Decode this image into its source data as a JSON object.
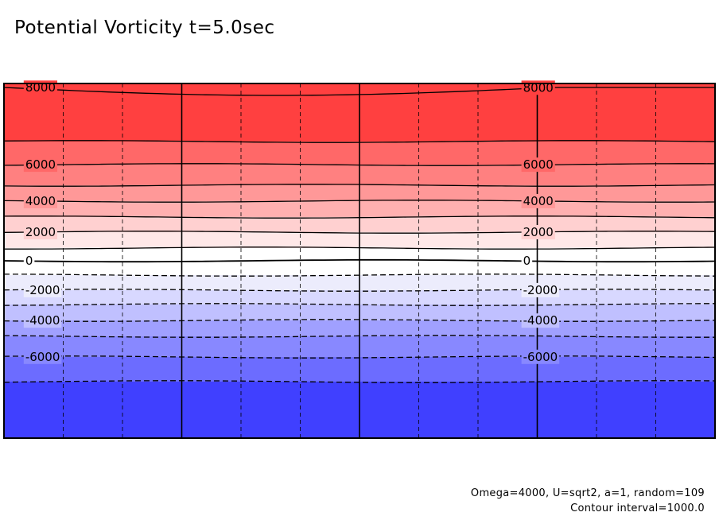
{
  "title": "Potential Vorticity t=5.0sec",
  "footnotes": {
    "params": "Omega=4000, U=sqrt2, a=1, random=109",
    "interval": "Contour interval=1000.0"
  },
  "chart_data": {
    "type": "heatmap",
    "title": "Potential Vorticity t=5.0sec",
    "xlim": [
      0,
      1
    ],
    "ylim": [
      -9000,
      9000
    ],
    "contour_interval": 1000.0,
    "fill_bands": [
      {
        "from": 7000,
        "to": 9000,
        "color": "#ff4040"
      },
      {
        "from": 6000,
        "to": 7000,
        "color": "#ff6868"
      },
      {
        "from": 5000,
        "to": 6000,
        "color": "#ff8080"
      },
      {
        "from": 4000,
        "to": 5000,
        "color": "#ff9898"
      },
      {
        "from": 3000,
        "to": 4000,
        "color": "#ffb0b0"
      },
      {
        "from": 2000,
        "to": 3000,
        "color": "#ffd0d0"
      },
      {
        "from": 1000,
        "to": 2000,
        "color": "#ffe8e8"
      },
      {
        "from": 0,
        "to": 1000,
        "color": "#ffffff"
      },
      {
        "from": -1000,
        "to": 0,
        "color": "#ffffff"
      },
      {
        "from": -2000,
        "to": -1000,
        "color": "#ececfc"
      },
      {
        "from": -3000,
        "to": -2000,
        "color": "#d8d8ff"
      },
      {
        "from": -4000,
        "to": -3000,
        "color": "#c0c0ff"
      },
      {
        "from": -5000,
        "to": -4000,
        "color": "#a0a0ff"
      },
      {
        "from": -6000,
        "to": -5000,
        "color": "#8888ff"
      },
      {
        "from": -7000,
        "to": -6000,
        "color": "#6c6cff"
      },
      {
        "from": -9000,
        "to": -7000,
        "color": "#4040ff"
      }
    ],
    "contour_levels": [
      8000,
      7000,
      6000,
      5000,
      4000,
      3000,
      2000,
      1000,
      0,
      -1000,
      -2000,
      -3000,
      -4000,
      -5000,
      -6000,
      -7000
    ],
    "contour_labels": [
      {
        "level": 8000,
        "text": "8000",
        "x": [
          0.03,
          0.73
        ]
      },
      {
        "level": 6000,
        "text": "6000",
        "x": [
          0.03,
          0.73
        ]
      },
      {
        "level": 4000,
        "text": "4000",
        "x": [
          0.03,
          0.73
        ]
      },
      {
        "level": 2000,
        "text": "2000",
        "x": [
          0.03,
          0.73
        ]
      },
      {
        "level": 0,
        "text": "0",
        "x": [
          0.03,
          0.73
        ]
      },
      {
        "level": -2000,
        "text": "-2000",
        "x": [
          0.03,
          0.73
        ]
      },
      {
        "level": -4000,
        "text": "-4000",
        "x": [
          0.03,
          0.73
        ]
      },
      {
        "level": -6000,
        "text": "-6000",
        "x": [
          0.03,
          0.73
        ]
      }
    ],
    "grid": true,
    "legend": "none",
    "colors": {
      "positive": "#ff4040",
      "negative": "#4040ff",
      "zero": "#ffffff"
    }
  }
}
